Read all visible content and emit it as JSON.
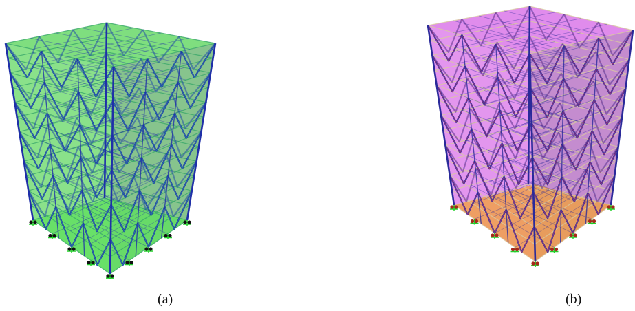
{
  "figure": {
    "panels": [
      {
        "id": "a",
        "caption": "(a)",
        "palette": {
          "face": "#29c829",
          "face_dark": "#0f8a1c",
          "member": "#1f2fa8",
          "member_hi": "#2a9aa8",
          "slab_edge": "#3aa86a",
          "base": "#5fe05f",
          "support": "#111111",
          "support_leg": "#22d02a"
        }
      },
      {
        "id": "b",
        "caption": "(b)",
        "palette": {
          "face": "#cc3fe0",
          "face_dark": "#8a1aa0",
          "member": "#2a2a9a",
          "member_hi": "#c83a6a",
          "slab_edge": "#d8c8a0",
          "base": "#f0a040",
          "support": "#a52a1a",
          "support_leg": "#22d02a"
        }
      }
    ]
  }
}
